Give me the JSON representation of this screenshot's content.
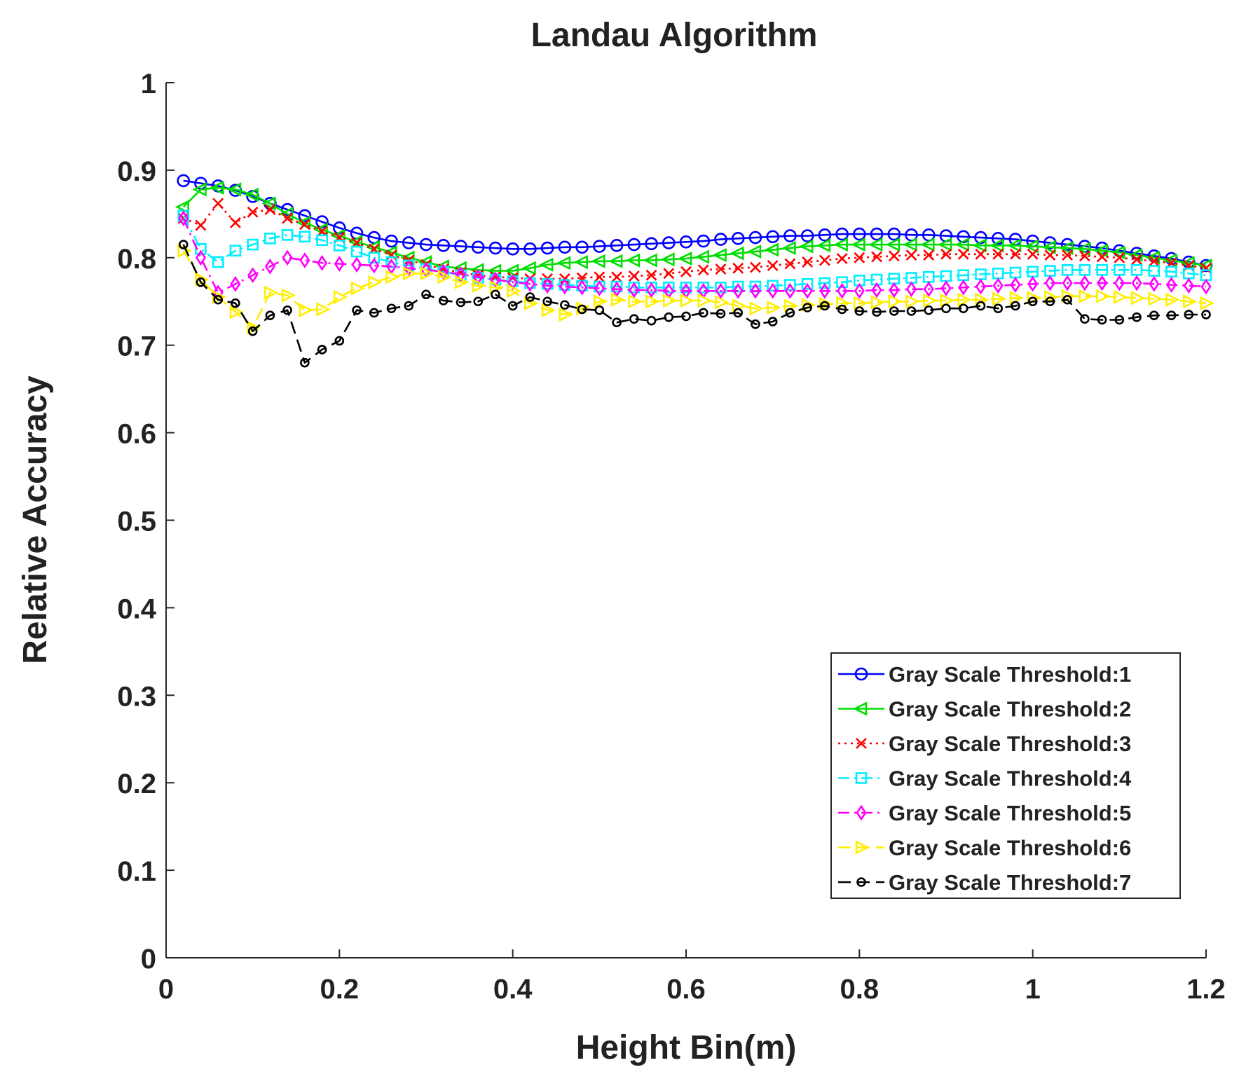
{
  "chart_data": {
    "type": "line",
    "title": "Landau Algorithm",
    "xlabel": "Height Bin(m)",
    "ylabel": "Relative Accuracy",
    "xlim": [
      0,
      1.2
    ],
    "ylim": [
      0,
      1
    ],
    "xticks": [
      0,
      0.2,
      0.4,
      0.6,
      0.8,
      1,
      1.2
    ],
    "xtick_labels": [
      "0",
      "0.2",
      "0.4",
      "0.6",
      "0.8",
      "1",
      "1.2"
    ],
    "yticks": [
      0,
      0.1,
      0.2,
      0.3,
      0.4,
      0.5,
      0.6,
      0.7,
      0.8,
      0.9,
      1
    ],
    "ytick_labels": [
      "0",
      "0.1",
      "0.2",
      "0.3",
      "0.4",
      "0.5",
      "0.6",
      "0.7",
      "0.8",
      "0.9",
      "1"
    ],
    "grid": false,
    "legend_position": "bottom-right",
    "series": [
      {
        "name": "Gray Scale Threshold:1",
        "color": "#0000ff",
        "line_style": "solid",
        "marker": "circle",
        "x": [
          0.02,
          0.04,
          0.06,
          0.08,
          0.1,
          0.12,
          0.14,
          0.16,
          0.18,
          0.2,
          0.22,
          0.24,
          0.26,
          0.28,
          0.3,
          0.32,
          0.34,
          0.36,
          0.38,
          0.4,
          0.42,
          0.44,
          0.46,
          0.48,
          0.5,
          0.52,
          0.54,
          0.56,
          0.58,
          0.6,
          0.62,
          0.64,
          0.66,
          0.68,
          0.7,
          0.72,
          0.74,
          0.76,
          0.78,
          0.8,
          0.82,
          0.84,
          0.86,
          0.88,
          0.9,
          0.92,
          0.94,
          0.96,
          0.98,
          1.0,
          1.02,
          1.04,
          1.06,
          1.08,
          1.1,
          1.12,
          1.14,
          1.16,
          1.18,
          1.2
        ],
        "y": [
          0.888,
          0.885,
          0.882,
          0.877,
          0.87,
          0.862,
          0.855,
          0.848,
          0.841,
          0.834,
          0.828,
          0.823,
          0.819,
          0.817,
          0.815,
          0.814,
          0.813,
          0.812,
          0.811,
          0.81,
          0.81,
          0.811,
          0.812,
          0.812,
          0.813,
          0.814,
          0.815,
          0.816,
          0.817,
          0.818,
          0.819,
          0.821,
          0.822,
          0.823,
          0.824,
          0.825,
          0.825,
          0.826,
          0.827,
          0.827,
          0.827,
          0.827,
          0.826,
          0.826,
          0.825,
          0.824,
          0.823,
          0.822,
          0.821,
          0.819,
          0.817,
          0.815,
          0.813,
          0.811,
          0.808,
          0.805,
          0.802,
          0.799,
          0.795,
          0.791
        ]
      },
      {
        "name": "Gray Scale Threshold:2",
        "color": "#00dd00",
        "line_style": "solid",
        "marker": "triangle-left",
        "x": [
          0.02,
          0.04,
          0.06,
          0.08,
          0.1,
          0.12,
          0.14,
          0.16,
          0.18,
          0.2,
          0.22,
          0.24,
          0.26,
          0.28,
          0.3,
          0.32,
          0.34,
          0.36,
          0.38,
          0.4,
          0.42,
          0.44,
          0.46,
          0.48,
          0.5,
          0.52,
          0.54,
          0.56,
          0.58,
          0.6,
          0.62,
          0.64,
          0.66,
          0.68,
          0.7,
          0.72,
          0.74,
          0.76,
          0.78,
          0.8,
          0.82,
          0.84,
          0.86,
          0.88,
          0.9,
          0.92,
          0.94,
          0.96,
          0.98,
          1.0,
          1.02,
          1.04,
          1.06,
          1.08,
          1.1,
          1.12,
          1.14,
          1.16,
          1.18,
          1.2
        ],
        "y": [
          0.858,
          0.878,
          0.88,
          0.878,
          0.872,
          0.862,
          0.85,
          0.84,
          0.832,
          0.825,
          0.818,
          0.812,
          0.806,
          0.8,
          0.795,
          0.79,
          0.788,
          0.786,
          0.785,
          0.785,
          0.788,
          0.792,
          0.794,
          0.795,
          0.796,
          0.796,
          0.797,
          0.797,
          0.798,
          0.799,
          0.801,
          0.803,
          0.805,
          0.807,
          0.809,
          0.811,
          0.813,
          0.814,
          0.815,
          0.815,
          0.815,
          0.815,
          0.815,
          0.815,
          0.815,
          0.815,
          0.814,
          0.814,
          0.814,
          0.813,
          0.812,
          0.811,
          0.81,
          0.808,
          0.806,
          0.803,
          0.8,
          0.797,
          0.794,
          0.791
        ]
      },
      {
        "name": "Gray Scale Threshold:3",
        "color": "#ff0000",
        "line_style": "dotted",
        "marker": "x",
        "x": [
          0.02,
          0.04,
          0.06,
          0.08,
          0.1,
          0.12,
          0.14,
          0.16,
          0.18,
          0.2,
          0.22,
          0.24,
          0.26,
          0.28,
          0.3,
          0.32,
          0.34,
          0.36,
          0.38,
          0.4,
          0.42,
          0.44,
          0.46,
          0.48,
          0.5,
          0.52,
          0.54,
          0.56,
          0.58,
          0.6,
          0.62,
          0.64,
          0.66,
          0.68,
          0.7,
          0.72,
          0.74,
          0.76,
          0.78,
          0.8,
          0.82,
          0.84,
          0.86,
          0.88,
          0.9,
          0.92,
          0.94,
          0.96,
          0.98,
          1.0,
          1.02,
          1.04,
          1.06,
          1.08,
          1.1,
          1.12,
          1.14,
          1.16,
          1.18,
          1.2
        ],
        "y": [
          0.845,
          0.837,
          0.862,
          0.84,
          0.852,
          0.855,
          0.845,
          0.838,
          0.83,
          0.823,
          0.817,
          0.81,
          0.803,
          0.797,
          0.792,
          0.787,
          0.783,
          0.78,
          0.778,
          0.777,
          0.776,
          0.776,
          0.776,
          0.777,
          0.778,
          0.778,
          0.779,
          0.78,
          0.782,
          0.784,
          0.786,
          0.787,
          0.788,
          0.789,
          0.791,
          0.793,
          0.795,
          0.797,
          0.799,
          0.8,
          0.801,
          0.802,
          0.803,
          0.803,
          0.804,
          0.804,
          0.804,
          0.804,
          0.804,
          0.804,
          0.803,
          0.803,
          0.802,
          0.801,
          0.8,
          0.798,
          0.796,
          0.794,
          0.791,
          0.788
        ]
      },
      {
        "name": "Gray Scale Threshold:4",
        "color": "#00eeff",
        "line_style": "dashdot",
        "marker": "square",
        "x": [
          0.02,
          0.04,
          0.06,
          0.08,
          0.1,
          0.12,
          0.14,
          0.16,
          0.18,
          0.2,
          0.22,
          0.24,
          0.26,
          0.28,
          0.3,
          0.32,
          0.34,
          0.36,
          0.38,
          0.4,
          0.42,
          0.44,
          0.46,
          0.48,
          0.5,
          0.52,
          0.54,
          0.56,
          0.58,
          0.6,
          0.62,
          0.64,
          0.66,
          0.68,
          0.7,
          0.72,
          0.74,
          0.76,
          0.78,
          0.8,
          0.82,
          0.84,
          0.86,
          0.88,
          0.9,
          0.92,
          0.94,
          0.96,
          0.98,
          1.0,
          1.02,
          1.04,
          1.06,
          1.08,
          1.1,
          1.12,
          1.14,
          1.16,
          1.18,
          1.2
        ],
        "y": [
          0.848,
          0.81,
          0.795,
          0.808,
          0.815,
          0.822,
          0.826,
          0.824,
          0.82,
          0.814,
          0.807,
          0.8,
          0.795,
          0.791,
          0.787,
          0.784,
          0.78,
          0.777,
          0.775,
          0.773,
          0.771,
          0.77,
          0.769,
          0.768,
          0.767,
          0.767,
          0.766,
          0.766,
          0.766,
          0.766,
          0.766,
          0.766,
          0.767,
          0.767,
          0.768,
          0.769,
          0.77,
          0.771,
          0.772,
          0.774,
          0.775,
          0.776,
          0.777,
          0.778,
          0.779,
          0.78,
          0.781,
          0.782,
          0.783,
          0.784,
          0.785,
          0.786,
          0.786,
          0.786,
          0.786,
          0.786,
          0.785,
          0.784,
          0.782,
          0.78
        ]
      },
      {
        "name": "Gray Scale Threshold:5",
        "color": "#ff00ff",
        "line_style": "dashdot",
        "marker": "diamond",
        "x": [
          0.02,
          0.04,
          0.06,
          0.08,
          0.1,
          0.12,
          0.14,
          0.16,
          0.18,
          0.2,
          0.22,
          0.24,
          0.26,
          0.28,
          0.3,
          0.32,
          0.34,
          0.36,
          0.38,
          0.4,
          0.42,
          0.44,
          0.46,
          0.48,
          0.5,
          0.52,
          0.54,
          0.56,
          0.58,
          0.6,
          0.62,
          0.64,
          0.66,
          0.68,
          0.7,
          0.72,
          0.74,
          0.76,
          0.78,
          0.8,
          0.82,
          0.84,
          0.86,
          0.88,
          0.9,
          0.92,
          0.94,
          0.96,
          0.98,
          1.0,
          1.02,
          1.04,
          1.06,
          1.08,
          1.1,
          1.12,
          1.14,
          1.16,
          1.18,
          1.2
        ],
        "y": [
          0.845,
          0.8,
          0.76,
          0.77,
          0.78,
          0.79,
          0.8,
          0.797,
          0.794,
          0.793,
          0.792,
          0.791,
          0.79,
          0.788,
          0.786,
          0.784,
          0.781,
          0.778,
          0.775,
          0.772,
          0.77,
          0.768,
          0.767,
          0.766,
          0.765,
          0.764,
          0.763,
          0.763,
          0.762,
          0.762,
          0.762,
          0.762,
          0.762,
          0.762,
          0.762,
          0.762,
          0.762,
          0.762,
          0.762,
          0.762,
          0.763,
          0.763,
          0.764,
          0.764,
          0.765,
          0.766,
          0.767,
          0.768,
          0.769,
          0.77,
          0.771,
          0.771,
          0.771,
          0.771,
          0.771,
          0.771,
          0.77,
          0.769,
          0.768,
          0.767
        ]
      },
      {
        "name": "Gray Scale Threshold:6",
        "color": "#ffee00",
        "line_style": "dashed",
        "marker": "triangle-right",
        "x": [
          0.02,
          0.04,
          0.06,
          0.08,
          0.1,
          0.12,
          0.14,
          0.16,
          0.18,
          0.2,
          0.22,
          0.24,
          0.26,
          0.28,
          0.3,
          0.32,
          0.34,
          0.36,
          0.38,
          0.4,
          0.42,
          0.44,
          0.46,
          0.48,
          0.5,
          0.52,
          0.54,
          0.56,
          0.58,
          0.6,
          0.62,
          0.64,
          0.66,
          0.68,
          0.7,
          0.72,
          0.74,
          0.76,
          0.78,
          0.8,
          0.82,
          0.84,
          0.86,
          0.88,
          0.9,
          0.92,
          0.94,
          0.96,
          0.98,
          1.0,
          1.02,
          1.04,
          1.06,
          1.08,
          1.1,
          1.12,
          1.14,
          1.16,
          1.18,
          1.2
        ],
        "y": [
          0.808,
          0.775,
          0.755,
          0.738,
          0.72,
          0.76,
          0.757,
          0.74,
          0.741,
          0.755,
          0.765,
          0.772,
          0.778,
          0.782,
          0.782,
          0.778,
          0.772,
          0.768,
          0.766,
          0.762,
          0.748,
          0.74,
          0.735,
          0.742,
          0.75,
          0.752,
          0.75,
          0.75,
          0.751,
          0.751,
          0.751,
          0.749,
          0.745,
          0.742,
          0.743,
          0.745,
          0.746,
          0.747,
          0.748,
          0.748,
          0.749,
          0.75,
          0.75,
          0.751,
          0.751,
          0.752,
          0.752,
          0.753,
          0.754,
          0.754,
          0.755,
          0.756,
          0.756,
          0.756,
          0.755,
          0.754,
          0.753,
          0.752,
          0.75,
          0.748
        ]
      },
      {
        "name": "Gray Scale Threshold:7",
        "color": "#000000",
        "line_style": "dashed",
        "marker": "small-circle",
        "x": [
          0.02,
          0.04,
          0.06,
          0.08,
          0.1,
          0.12,
          0.14,
          0.16,
          0.18,
          0.2,
          0.22,
          0.24,
          0.26,
          0.28,
          0.3,
          0.32,
          0.34,
          0.36,
          0.38,
          0.4,
          0.42,
          0.44,
          0.46,
          0.48,
          0.5,
          0.52,
          0.54,
          0.56,
          0.58,
          0.6,
          0.62,
          0.64,
          0.66,
          0.68,
          0.7,
          0.72,
          0.74,
          0.76,
          0.78,
          0.8,
          0.82,
          0.84,
          0.86,
          0.88,
          0.9,
          0.92,
          0.94,
          0.96,
          0.98,
          1.0,
          1.02,
          1.04,
          1.06,
          1.08,
          1.1,
          1.12,
          1.14,
          1.16,
          1.18,
          1.2
        ],
        "y": [
          0.815,
          0.772,
          0.752,
          0.748,
          0.716,
          0.734,
          0.74,
          0.68,
          0.695,
          0.705,
          0.74,
          0.737,
          0.742,
          0.745,
          0.758,
          0.751,
          0.749,
          0.75,
          0.758,
          0.745,
          0.755,
          0.75,
          0.746,
          0.741,
          0.74,
          0.726,
          0.73,
          0.728,
          0.732,
          0.733,
          0.737,
          0.736,
          0.737,
          0.724,
          0.727,
          0.737,
          0.743,
          0.745,
          0.741,
          0.739,
          0.738,
          0.739,
          0.739,
          0.74,
          0.742,
          0.742,
          0.745,
          0.742,
          0.745,
          0.75,
          0.75,
          0.752,
          0.73,
          0.729,
          0.729,
          0.732,
          0.734,
          0.734,
          0.735,
          0.735
        ]
      }
    ]
  }
}
